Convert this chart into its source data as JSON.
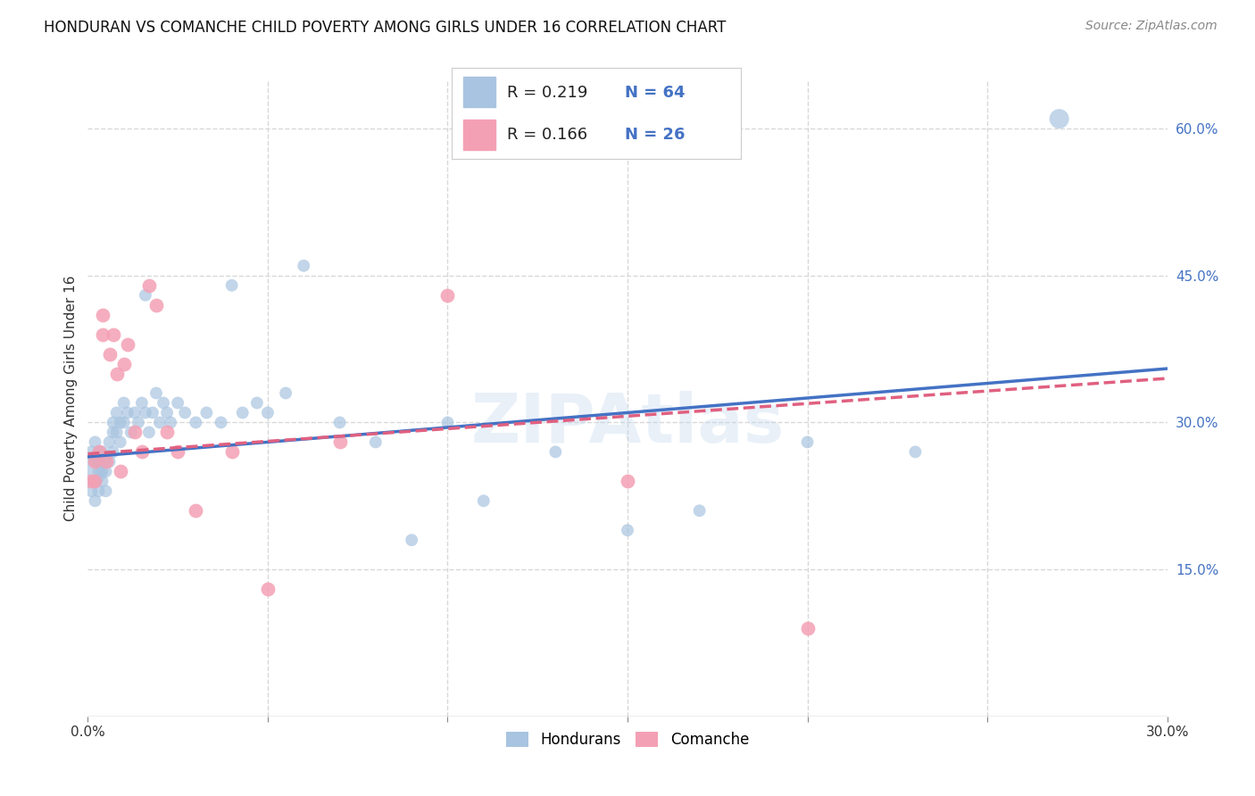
{
  "title": "HONDURAN VS COMANCHE CHILD POVERTY AMONG GIRLS UNDER 16 CORRELATION CHART",
  "source": "Source: ZipAtlas.com",
  "ylabel": "Child Poverty Among Girls Under 16",
  "xlim": [
    0.0,
    0.3
  ],
  "ylim": [
    0.0,
    0.65
  ],
  "ytick_labels_right": [
    "15.0%",
    "30.0%",
    "45.0%",
    "60.0%"
  ],
  "ytick_values_right": [
    0.15,
    0.3,
    0.45,
    0.6
  ],
  "background_color": "#ffffff",
  "grid_color": "#d8d8d8",
  "honduran_color": "#a8c4e0",
  "comanche_color": "#f4a0b4",
  "honduran_line_color": "#4472c4",
  "comanche_line_color": "#e06080",
  "legend_R_honduran": "0.219",
  "legend_N_honduran": "64",
  "legend_R_comanche": "0.166",
  "legend_N_comanche": "26",
  "watermark": "ZIPAtlas",
  "honduran_x": [
    0.001,
    0.001,
    0.001,
    0.002,
    0.002,
    0.002,
    0.002,
    0.003,
    0.003,
    0.003,
    0.003,
    0.004,
    0.004,
    0.004,
    0.005,
    0.005,
    0.005,
    0.006,
    0.006,
    0.007,
    0.007,
    0.007,
    0.008,
    0.008,
    0.009,
    0.009,
    0.01,
    0.01,
    0.011,
    0.012,
    0.013,
    0.014,
    0.015,
    0.016,
    0.016,
    0.017,
    0.018,
    0.019,
    0.02,
    0.021,
    0.022,
    0.023,
    0.025,
    0.027,
    0.03,
    0.033,
    0.037,
    0.04,
    0.043,
    0.047,
    0.05,
    0.055,
    0.06,
    0.07,
    0.08,
    0.09,
    0.1,
    0.11,
    0.13,
    0.15,
    0.17,
    0.2,
    0.23,
    0.27
  ],
  "honduran_y": [
    0.25,
    0.27,
    0.23,
    0.26,
    0.24,
    0.22,
    0.28,
    0.25,
    0.27,
    0.23,
    0.26,
    0.25,
    0.27,
    0.24,
    0.26,
    0.25,
    0.23,
    0.28,
    0.26,
    0.3,
    0.29,
    0.27,
    0.31,
    0.29,
    0.3,
    0.28,
    0.32,
    0.3,
    0.31,
    0.29,
    0.31,
    0.3,
    0.32,
    0.31,
    0.43,
    0.29,
    0.31,
    0.33,
    0.3,
    0.32,
    0.31,
    0.3,
    0.32,
    0.31,
    0.3,
    0.31,
    0.3,
    0.44,
    0.31,
    0.32,
    0.31,
    0.33,
    0.46,
    0.3,
    0.28,
    0.18,
    0.3,
    0.22,
    0.27,
    0.19,
    0.21,
    0.28,
    0.27,
    0.61
  ],
  "honduran_sizes": [
    600,
    100,
    100,
    100,
    100,
    100,
    100,
    100,
    100,
    100,
    100,
    100,
    100,
    100,
    100,
    100,
    100,
    100,
    100,
    100,
    100,
    100,
    100,
    100,
    100,
    100,
    100,
    100,
    100,
    100,
    100,
    100,
    100,
    100,
    100,
    100,
    100,
    100,
    100,
    100,
    100,
    100,
    100,
    100,
    100,
    100,
    100,
    100,
    100,
    100,
    100,
    100,
    100,
    100,
    100,
    100,
    100,
    100,
    100,
    100,
    100,
    100,
    100,
    250
  ],
  "comanche_x": [
    0.001,
    0.002,
    0.002,
    0.003,
    0.004,
    0.004,
    0.005,
    0.006,
    0.007,
    0.008,
    0.009,
    0.01,
    0.011,
    0.013,
    0.015,
    0.017,
    0.019,
    0.022,
    0.025,
    0.03,
    0.04,
    0.05,
    0.07,
    0.1,
    0.15,
    0.2
  ],
  "comanche_y": [
    0.24,
    0.26,
    0.24,
    0.27,
    0.39,
    0.41,
    0.26,
    0.37,
    0.39,
    0.35,
    0.25,
    0.36,
    0.38,
    0.29,
    0.27,
    0.44,
    0.42,
    0.29,
    0.27,
    0.21,
    0.27,
    0.13,
    0.28,
    0.43,
    0.24,
    0.09
  ]
}
